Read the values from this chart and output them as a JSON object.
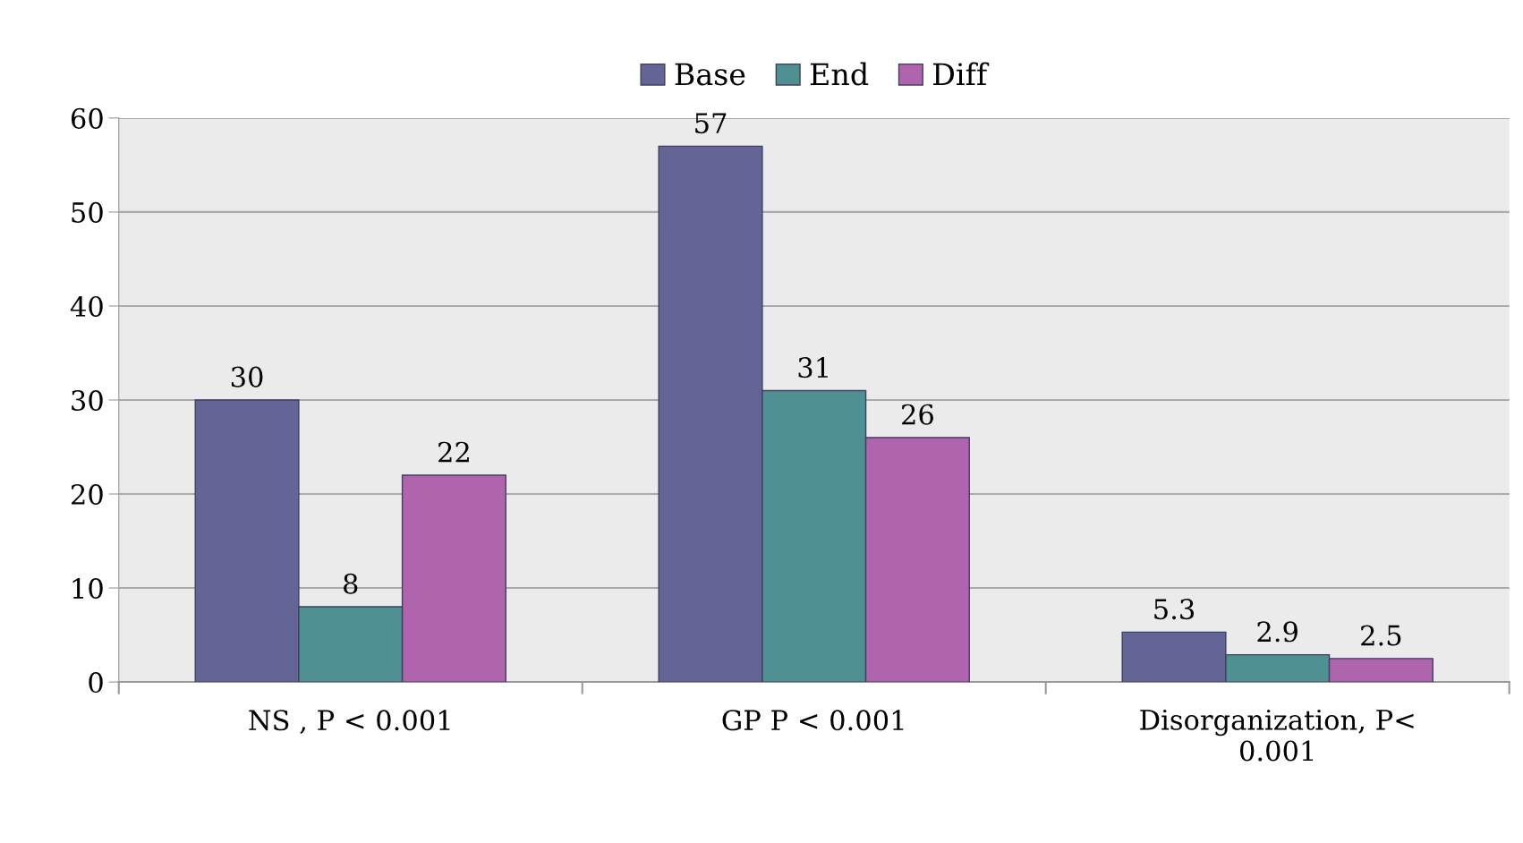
{
  "chart_data": {
    "type": "bar",
    "categories": [
      "NS , P < 0.001",
      "GP P < 0.001",
      "Disorganization, P<\n0.001"
    ],
    "series": [
      {
        "name": "Base",
        "color": "#646497",
        "values": [
          30,
          57,
          5.3
        ]
      },
      {
        "name": "End",
        "color": "#4f9093",
        "values": [
          8,
          31,
          2.9
        ]
      },
      {
        "name": "Diff",
        "color": "#b064ae",
        "values": [
          22,
          26,
          2.5
        ]
      }
    ],
    "ylim": [
      0,
      60
    ],
    "yticks": [
      0,
      10,
      20,
      30,
      40,
      50,
      60
    ],
    "grid": "y",
    "legend": "top",
    "data_labels": true
  }
}
